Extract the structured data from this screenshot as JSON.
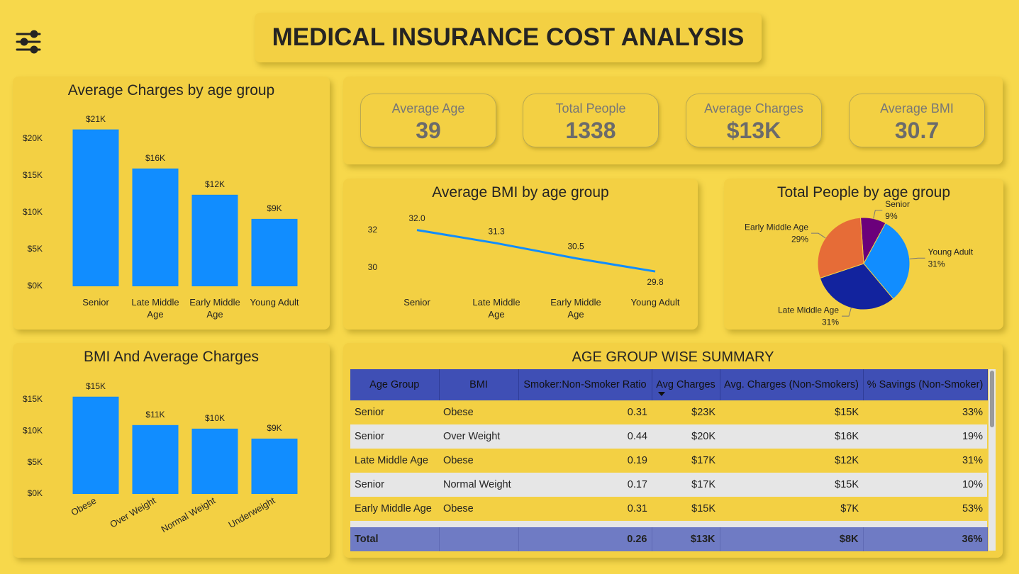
{
  "header": {
    "title": "MEDICAL INSURANCE COST ANALYSIS"
  },
  "kpis": [
    {
      "label": "Average Age",
      "value": 39
    },
    {
      "label": "Total People",
      "value": 1338
    },
    {
      "label": "Average Charges",
      "value": "$13K"
    },
    {
      "label": "Average BMI",
      "value": 30.7
    }
  ],
  "chart_data": [
    {
      "type": "bar",
      "title": "Average Charges by age group",
      "categories": [
        "Senior",
        "Late Middle Age",
        "Early Middle Age",
        "Young Adult"
      ],
      "values": [
        21250,
        15960,
        12400,
        9130
      ],
      "value_labels": [
        "$21K",
        "$16K",
        "$12K",
        "$9K"
      ],
      "color": "#118dff",
      "ylim": [
        0,
        24000
      ],
      "yticks": [
        {
          "value": 0,
          "label": "$0K"
        },
        {
          "value": 5000,
          "label": "$5K"
        },
        {
          "value": 10000,
          "label": "$10K"
        },
        {
          "value": 15000,
          "label": "$15K"
        },
        {
          "value": 20000,
          "label": "$20K"
        }
      ]
    },
    {
      "type": "line",
      "title": "Average BMI by age group",
      "categories": [
        "Senior",
        "Late Middle Age",
        "Early Middle Age",
        "Young Adult"
      ],
      "values": [
        32.0,
        31.3,
        30.5,
        29.8
      ],
      "value_labels": [
        "32.0",
        "31.3",
        "30.5",
        "29.8"
      ],
      "color": "#118dff",
      "ylim": [
        28.9,
        33
      ],
      "yticks": [
        30,
        32
      ]
    },
    {
      "type": "pie",
      "title": "Total People by age group",
      "categories": [
        "Senior",
        "Young Adult",
        "Late Middle Age",
        "Early Middle Age"
      ],
      "values": [
        9,
        31,
        31,
        29
      ],
      "value_labels": [
        "9%",
        "31%",
        "31%",
        "29%"
      ],
      "colors": [
        "#6b007b",
        "#118dff",
        "#12239e",
        "#e66c37"
      ]
    },
    {
      "type": "bar",
      "title": "BMI And Average Charges",
      "categories": [
        "Obese",
        "Over Weight",
        "Normal Weight",
        "Underweight"
      ],
      "values": [
        15450,
        10940,
        10370,
        8790
      ],
      "value_labels": [
        "$15K",
        "$11K",
        "$10K",
        "$9K"
      ],
      "color": "#118dff",
      "ylim": [
        0,
        17000
      ],
      "yticks": [
        {
          "value": 0,
          "label": "$0K"
        },
        {
          "value": 5000,
          "label": "$5K"
        },
        {
          "value": 10000,
          "label": "$10K"
        },
        {
          "value": 15000,
          "label": "$15K"
        }
      ]
    }
  ],
  "table": {
    "title": "AGE GROUP WISE SUMMARY",
    "columns": [
      "Age Group",
      "BMI",
      "Smoker:Non-Smoker Ratio",
      "Avg Charges",
      "Avg. Charges (Non-Smokers)",
      "% Savings (Non-Smoker)"
    ],
    "rows": [
      [
        "Senior",
        "Obese",
        "0.31",
        "$23K",
        "$15K",
        "33%"
      ],
      [
        "Senior",
        "Over Weight",
        "0.44",
        "$20K",
        "$16K",
        "19%"
      ],
      [
        "Late Middle Age",
        "Obese",
        "0.19",
        "$17K",
        "$12K",
        "31%"
      ],
      [
        "Senior",
        "Normal Weight",
        "0.17",
        "$17K",
        "$15K",
        "10%"
      ],
      [
        "Early Middle Age",
        "Obese",
        "0.31",
        "$15K",
        "$7K",
        "53%"
      ]
    ],
    "total": {
      "label": "Total",
      "values": [
        "0.26",
        "$13K",
        "$8K",
        "36%"
      ]
    }
  }
}
